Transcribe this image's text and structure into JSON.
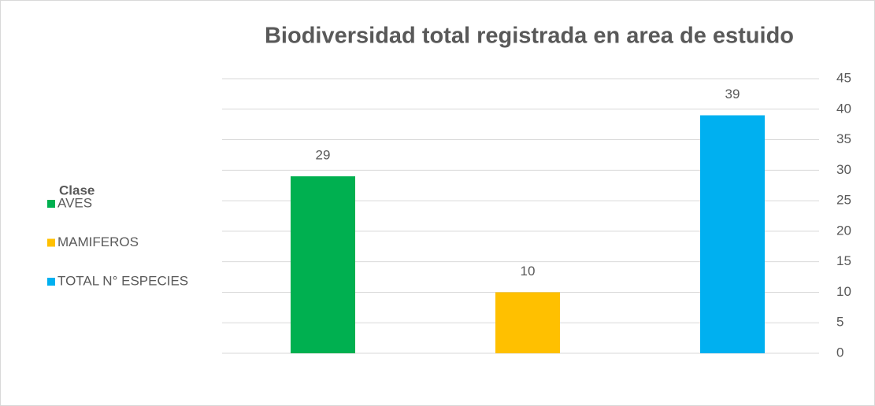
{
  "chart_data": {
    "type": "bar",
    "title": "Biodiversidad total registrada en area de estuido",
    "legend_title": "Clase",
    "categories": [
      "AVES",
      "MAMIFEROS",
      "TOTAL N° ESPECIES"
    ],
    "values": [
      29,
      10,
      39
    ],
    "colors": [
      "#00b050",
      "#ffc000",
      "#00b0f0"
    ],
    "ylim": [
      0,
      45
    ],
    "yticks": [
      0,
      5,
      10,
      15,
      20,
      25,
      30,
      35,
      40,
      45
    ],
    "grid": true,
    "y_axis_side": "right",
    "legend": "left"
  }
}
